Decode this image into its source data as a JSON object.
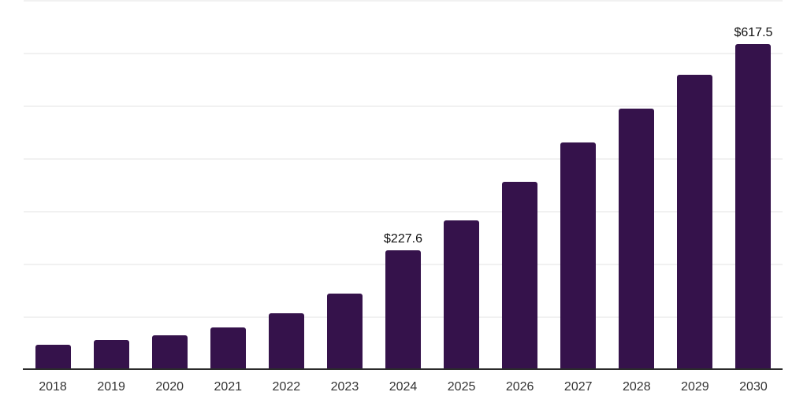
{
  "chart_data": {
    "type": "bar",
    "title": "",
    "xlabel": "",
    "ylabel": "",
    "categories": [
      "2018",
      "2019",
      "2020",
      "2021",
      "2022",
      "2023",
      "2024",
      "2025",
      "2026",
      "2027",
      "2028",
      "2029",
      "2030"
    ],
    "values": [
      48,
      57,
      65,
      81,
      108,
      144.6,
      227.6,
      284,
      356,
      432,
      495,
      559,
      617.5
    ],
    "data_labels": {
      "2024": "$227.6",
      "2030": "$617.5"
    },
    "ylim": [
      0,
      700
    ],
    "gridline_step": 100,
    "grid": "horizontal-only",
    "legend": "none",
    "y_axis_labels_visible": false,
    "bar_color": "#35124b",
    "axis_color": "#2b2b2b",
    "gridline_color": "#f1f1f1",
    "data_label_color": "#111111",
    "tick_label_color": "#333333",
    "background_color": "#ffffff"
  }
}
